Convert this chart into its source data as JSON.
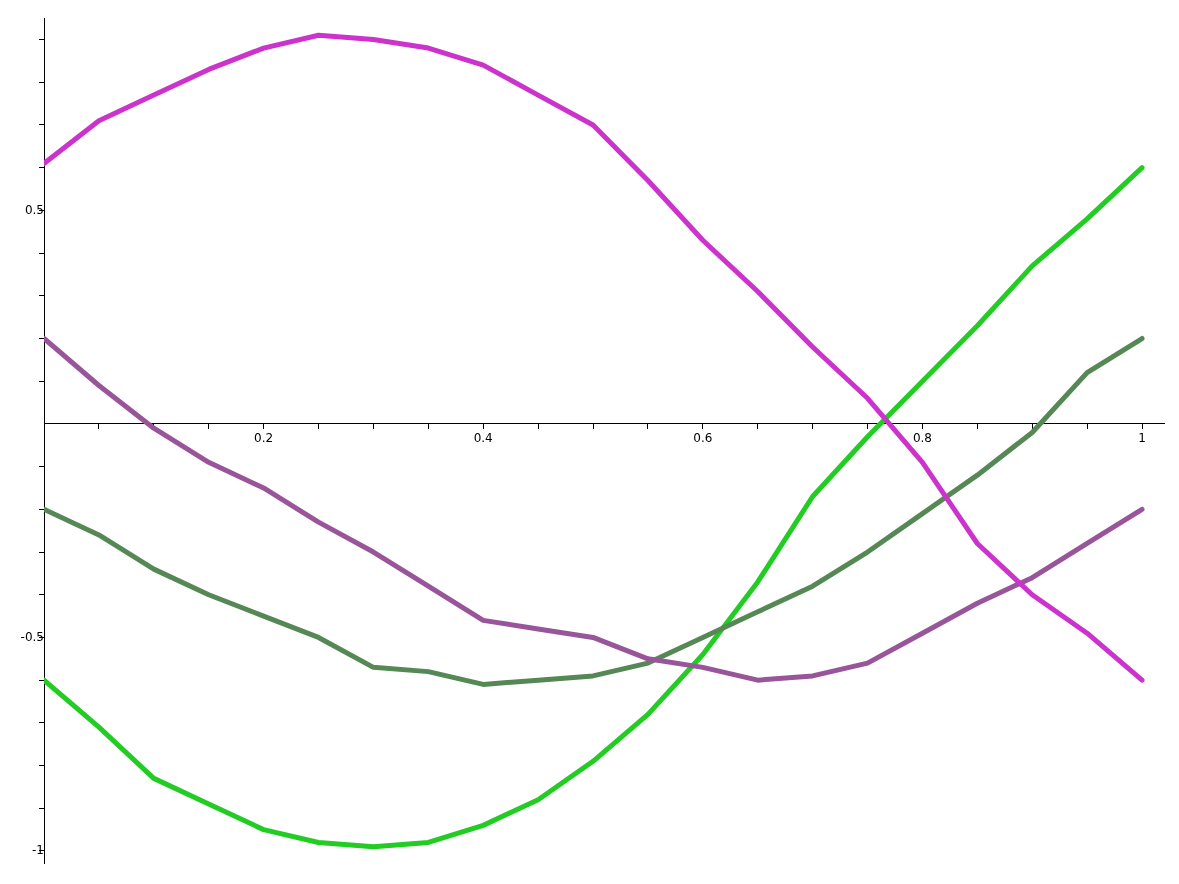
{
  "chart_data": {
    "type": "line",
    "x": [
      0,
      0.05,
      0.1,
      0.15,
      0.2,
      0.25,
      0.3,
      0.35,
      0.4,
      0.45,
      0.5,
      0.55,
      0.6,
      0.65,
      0.7,
      0.75,
      0.8,
      0.85,
      0.9,
      0.95,
      1
    ],
    "series": [
      {
        "color": "#cc33cc",
        "values": [
          0.61,
          0.71,
          0.77,
          0.83,
          0.88,
          0.91,
          0.9,
          0.88,
          0.84,
          0.77,
          0.7,
          0.57,
          0.43,
          0.31,
          0.18,
          0.06,
          -0.09,
          -0.28,
          -0.4,
          -0.49,
          -0.6
        ]
      },
      {
        "color": "#995599",
        "values": [
          0.2,
          0.09,
          -0.01,
          -0.09,
          -0.15,
          -0.23,
          -0.3,
          -0.38,
          -0.46,
          -0.48,
          -0.5,
          -0.55,
          -0.57,
          -0.6,
          -0.59,
          -0.56,
          -0.49,
          -0.42,
          -0.36,
          -0.28,
          -0.2
        ]
      },
      {
        "color": "#558855",
        "values": [
          -0.2,
          -0.26,
          -0.34,
          -0.4,
          -0.45,
          -0.5,
          -0.57,
          -0.58,
          -0.61,
          -0.6,
          -0.59,
          -0.56,
          -0.5,
          -0.44,
          -0.38,
          -0.3,
          -0.21,
          -0.12,
          -0.02,
          0.12,
          0.2
        ]
      },
      {
        "color": "#22cc22",
        "values": [
          -0.6,
          -0.71,
          -0.83,
          -0.89,
          -0.95,
          -0.98,
          -0.99,
          -0.98,
          -0.94,
          -0.88,
          -0.79,
          -0.68,
          -0.54,
          -0.37,
          -0.17,
          -0.03,
          0.1,
          0.23,
          0.37,
          0.48,
          0.6
        ]
      }
    ],
    "xlim": [
      0,
      1.02
    ],
    "ylim": [
      -1.03,
      0.95
    ],
    "xticks": [
      {
        "value": 0.05,
        "label": null
      },
      {
        "value": 0.1,
        "label": null
      },
      {
        "value": 0.15,
        "label": null
      },
      0.2,
      {
        "value": 0.25,
        "label": null
      },
      {
        "value": 0.3,
        "label": null
      },
      {
        "value": 0.35,
        "label": null
      },
      0.4,
      {
        "value": 0.45,
        "label": null
      },
      {
        "value": 0.5,
        "label": null
      },
      {
        "value": 0.55,
        "label": null
      },
      0.6,
      {
        "value": 0.65,
        "label": null
      },
      {
        "value": 0.7,
        "label": null
      },
      {
        "value": 0.75,
        "label": null
      },
      0.8,
      {
        "value": 0.85,
        "label": null
      },
      {
        "value": 0.9,
        "label": null
      },
      {
        "value": 0.95,
        "label": null
      },
      1
    ],
    "yticks": [
      -1,
      {
        "value": -0.9,
        "label": null
      },
      {
        "value": -0.8,
        "label": null
      },
      {
        "value": -0.7,
        "label": null
      },
      {
        "value": -0.6,
        "label": null
      },
      -0.5,
      {
        "value": -0.4,
        "label": null
      },
      {
        "value": -0.3,
        "label": null
      },
      {
        "value": -0.2,
        "label": null
      },
      {
        "value": -0.1,
        "label": null
      },
      {
        "value": 0.1,
        "label": null
      },
      {
        "value": 0.2,
        "label": null
      },
      {
        "value": 0.3,
        "label": null
      },
      {
        "value": 0.4,
        "label": null
      },
      0.5,
      {
        "value": 0.6,
        "label": null
      },
      {
        "value": 0.7,
        "label": null
      },
      {
        "value": 0.8,
        "label": null
      },
      {
        "value": 0.9,
        "label": null
      }
    ],
    "grid": false,
    "legend": false,
    "marker": "none",
    "line_style": "solid"
  }
}
